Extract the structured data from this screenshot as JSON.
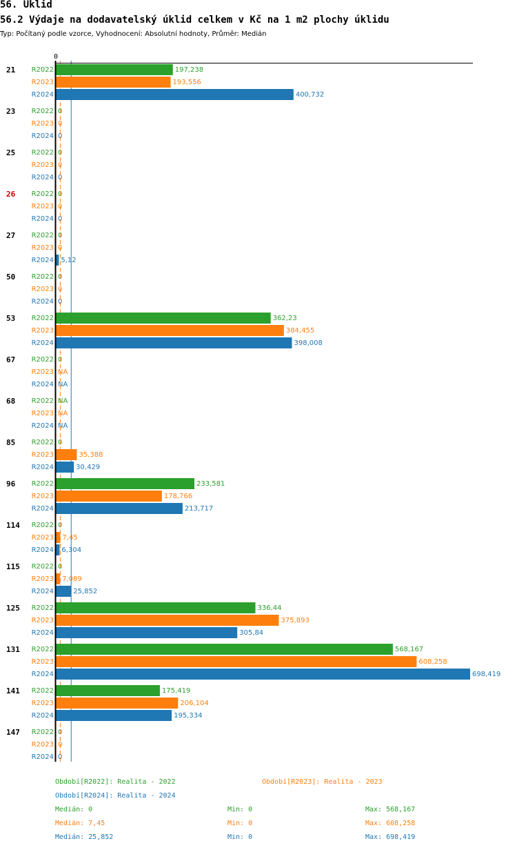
{
  "header": {
    "title": "56. Úklid",
    "subtitle": "56.2 Výdaje na dodavatelský úklid celkem v Kč na 1 m2 plochy úklidu",
    "info": "Typ: Počítaný podle vzorce, Vyhodnocení: Absolutní hodnoty, Průměr: Medián"
  },
  "colors": {
    "R2022": "#2ca02c",
    "R2023": "#ff7f0e",
    "R2024": "#1f77b4",
    "highlight": "#cc0000"
  },
  "chart_data": {
    "type": "bar",
    "orientation": "horizontal",
    "x_tick_label": "0",
    "xlim": [
      0,
      698.419
    ],
    "series_names": [
      "R2022",
      "R2023",
      "R2024"
    ],
    "highlighted_group": "26",
    "median_lines": {
      "R2023": 7.45,
      "R2024": 25.852
    },
    "groups": [
      {
        "id": "21",
        "values": [
          197.238,
          193.556,
          400.732
        ],
        "labels": [
          "197,238",
          "193,556",
          "400,732"
        ]
      },
      {
        "id": "23",
        "values": [
          0,
          0,
          0
        ],
        "labels": [
          "0",
          "0",
          "0"
        ]
      },
      {
        "id": "25",
        "values": [
          0,
          0,
          0
        ],
        "labels": [
          "0",
          "0",
          "0"
        ]
      },
      {
        "id": "26",
        "values": [
          0,
          0,
          0
        ],
        "labels": [
          "0",
          "0",
          "0"
        ]
      },
      {
        "id": "27",
        "values": [
          0,
          0,
          5.12
        ],
        "labels": [
          "0",
          "0",
          "5,12"
        ]
      },
      {
        "id": "50",
        "values": [
          0,
          0,
          0
        ],
        "labels": [
          "0",
          "0",
          "0"
        ]
      },
      {
        "id": "53",
        "values": [
          362.23,
          384.455,
          398.008
        ],
        "labels": [
          "362,23",
          "384,455",
          "398,008"
        ]
      },
      {
        "id": "67",
        "values": [
          0,
          null,
          null
        ],
        "labels": [
          "0",
          "NA",
          "NA"
        ]
      },
      {
        "id": "68",
        "values": [
          null,
          null,
          null
        ],
        "labels": [
          "NA",
          "NA",
          "NA"
        ]
      },
      {
        "id": "85",
        "values": [
          0,
          35.388,
          30.429
        ],
        "labels": [
          "0",
          "35,388",
          "30,429"
        ]
      },
      {
        "id": "96",
        "values": [
          233.581,
          178.766,
          213.717
        ],
        "labels": [
          "233,581",
          "178,766",
          "213,717"
        ]
      },
      {
        "id": "114",
        "values": [
          0,
          7.45,
          6.304
        ],
        "labels": [
          "0",
          "7,45",
          "6,304"
        ]
      },
      {
        "id": "115",
        "values": [
          0,
          7.089,
          25.852
        ],
        "labels": [
          "0",
          "7,089",
          "25,852"
        ]
      },
      {
        "id": "125",
        "values": [
          336.44,
          375.893,
          305.84
        ],
        "labels": [
          "336,44",
          "375,893",
          "305,84"
        ]
      },
      {
        "id": "131",
        "values": [
          568.167,
          608.258,
          698.419
        ],
        "labels": [
          "568,167",
          "608,258",
          "698,419"
        ]
      },
      {
        "id": "141",
        "values": [
          175.419,
          206.104,
          195.334
        ],
        "labels": [
          "175,419",
          "206,104",
          "195,334"
        ]
      },
      {
        "id": "147",
        "values": [
          0,
          0,
          0
        ],
        "labels": [
          "0",
          "0",
          "0"
        ]
      }
    ]
  },
  "legend": {
    "r2022": "Období[R2022]: Realita - 2022",
    "r2023": "Období[R2023]: Realita - 2023",
    "r2024": "Období[R2024]: Realita - 2024"
  },
  "stats": [
    {
      "median": "Medián: 0",
      "min": "Min: 0",
      "max": "Max: 568,167"
    },
    {
      "median": "Medián: 7,45",
      "min": "Min: 0",
      "max": "Max: 608,258"
    },
    {
      "median": "Medián: 25,852",
      "min": "Min: 0",
      "max": "Max: 698,419"
    }
  ]
}
